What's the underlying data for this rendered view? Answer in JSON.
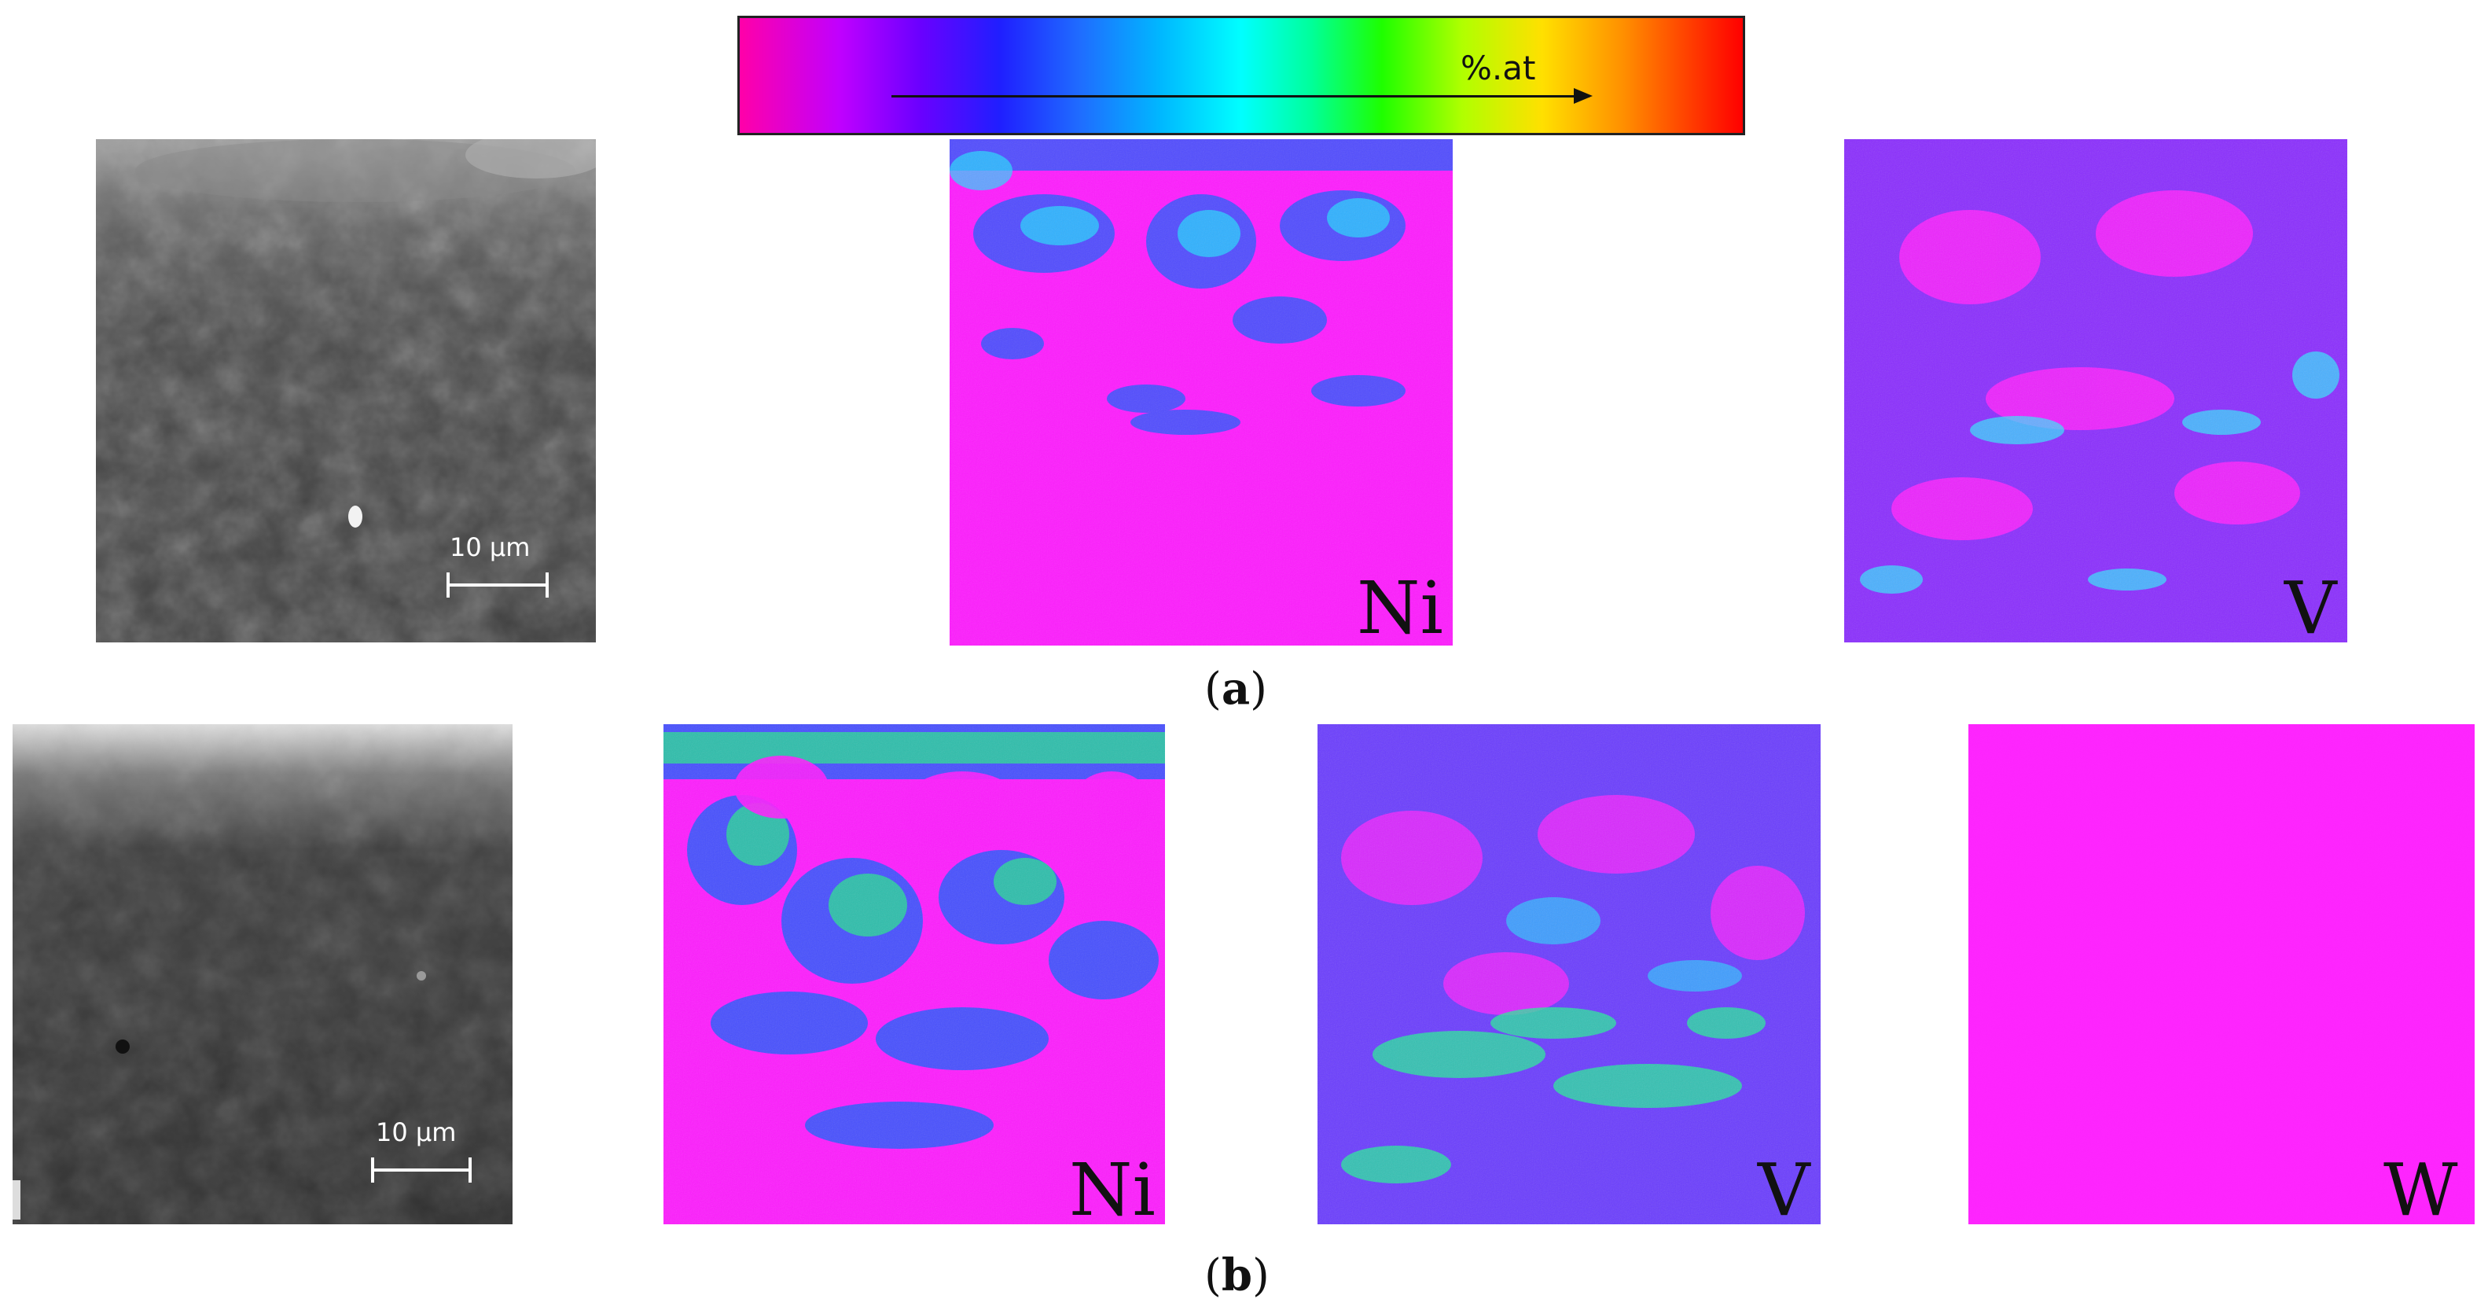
{
  "colorbar": {
    "label": "%.at"
  },
  "row_a": {
    "caption_open": "(",
    "caption_letter": "a",
    "caption_close": ")",
    "scale_label": "10 µm",
    "maps": [
      {
        "element": "Ni"
      },
      {
        "element": "V"
      }
    ]
  },
  "row_b": {
    "caption_open": "(",
    "caption_letter": "b",
    "caption_close": ")",
    "scale_label": "10 µm",
    "maps": [
      {
        "element": "Ni"
      },
      {
        "element": "V"
      },
      {
        "element": "W"
      }
    ]
  },
  "colors": {
    "magenta": "#ff00ff",
    "blue": "#3355ff",
    "cyan": "#22ddff",
    "green": "#22ee88",
    "sem_dark": "#3a3a3a"
  }
}
